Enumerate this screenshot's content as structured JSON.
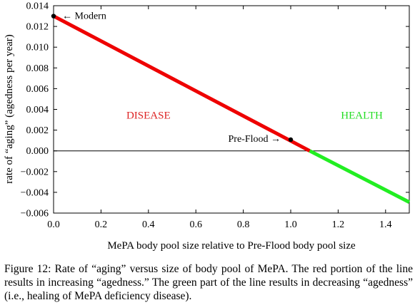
{
  "chart_data": {
    "type": "line",
    "xlabel": "MePA body pool size relative to Pre-Flood body pool size",
    "ylabel": "rate of “aging” (agedness per year)",
    "xlim": [
      0,
      1.5
    ],
    "ylim": [
      -0.006,
      0.014
    ],
    "x_ticks": [
      "0.0",
      "0.2",
      "0.4",
      "0.6",
      "0.8",
      "1.0",
      "1.2",
      "1.4"
    ],
    "x_tick_values": [
      0,
      0.2,
      0.4,
      0.6,
      0.8,
      1.0,
      1.2,
      1.4
    ],
    "y_ticks": [
      "−0.006",
      "−0.004",
      "−0.002",
      "0.000",
      "0.002",
      "0.004",
      "0.006",
      "0.008",
      "0.010",
      "0.012",
      "0.014"
    ],
    "y_tick_values": [
      -0.006,
      -0.004,
      -0.002,
      0.0,
      0.002,
      0.004,
      0.006,
      0.008,
      0.01,
      0.012,
      0.014
    ],
    "grid": false,
    "series": [
      {
        "color": "#ee0000",
        "x": [
          0.0,
          1.08
        ],
        "y": [
          0.013,
          0.0
        ]
      },
      {
        "color": "#22ee22",
        "x": [
          1.08,
          1.5
        ],
        "y": [
          0.0,
          -0.00495
        ]
      }
    ],
    "zero_line": {
      "y": 0.0
    },
    "points": [
      {
        "label": "← Modern",
        "x": 0.0,
        "y": 0.013
      },
      {
        "label": "Pre-Flood →",
        "x": 1.0,
        "y": 0.00108
      }
    ],
    "annotations": [
      {
        "text": "DISEASE",
        "color": "#dd2222",
        "x": 0.4,
        "y": 0.0031
      },
      {
        "text": "HEALTH",
        "color": "#22dd22",
        "x": 1.3,
        "y": 0.0031
      }
    ]
  },
  "caption": "Figure 12: Rate of “aging” versus size of body pool of MePA. The red portion of the line results in increasing “agedness.” The green part of the line results in decreasing “agedness” (i.e., healing of MePA deficiency disease)."
}
